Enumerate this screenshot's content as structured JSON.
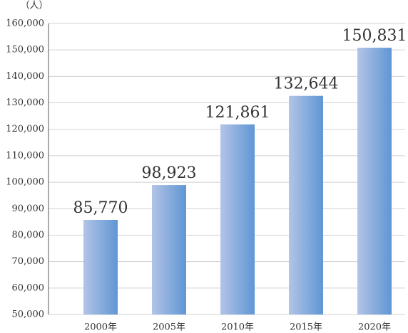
{
  "chart_data": {
    "type": "bar",
    "y_axis_label": "（人）",
    "categories": [
      "2000年",
      "2005年",
      "2010年",
      "2015年",
      "2020年"
    ],
    "values": [
      85770,
      98923,
      121861,
      132644,
      150831
    ],
    "value_labels": [
      "85,770",
      "98,923",
      "121,861",
      "132,644",
      "150,831"
    ],
    "ylim": [
      50000,
      160000
    ],
    "yticks": [
      {
        "value": 50000,
        "label": "50,000"
      },
      {
        "value": 60000,
        "label": "60,000"
      },
      {
        "value": 70000,
        "label": "70,000"
      },
      {
        "value": 80000,
        "label": "80,000"
      },
      {
        "value": 90000,
        "label": "90,000"
      },
      {
        "value": 100000,
        "label": "100,000"
      },
      {
        "value": 110000,
        "label": "110,000"
      },
      {
        "value": 120000,
        "label": "120,000"
      },
      {
        "value": 130000,
        "label": "130,000"
      },
      {
        "value": 140000,
        "label": "140,000"
      },
      {
        "value": 150000,
        "label": "150,000"
      },
      {
        "value": 160000,
        "label": "160,000"
      }
    ],
    "grid": true
  }
}
